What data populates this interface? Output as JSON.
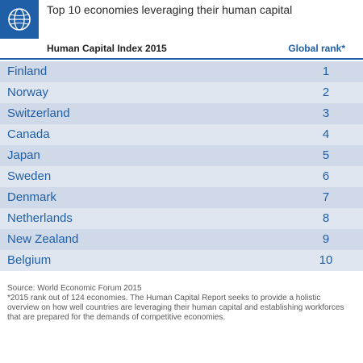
{
  "header": {
    "logo_icon": "globe-icon",
    "title": "Top 10 economies leveraging their human capital"
  },
  "columns": {
    "left": "Human Capital Index 2015",
    "right": "Global rank*"
  },
  "colors": {
    "accent": "#1f5fa8",
    "row_odd": "#cfd9e8",
    "row_even": "#dfe6f0"
  },
  "chart_data": {
    "type": "table",
    "columns": [
      "Human Capital Index 2015",
      "Global rank*"
    ],
    "rows": [
      {
        "country": "Finland",
        "rank": 1
      },
      {
        "country": "Norway",
        "rank": 2
      },
      {
        "country": "Switzerland",
        "rank": 3
      },
      {
        "country": "Canada",
        "rank": 4
      },
      {
        "country": "Japan",
        "rank": 5
      },
      {
        "country": "Sweden",
        "rank": 6
      },
      {
        "country": "Denmark",
        "rank": 7
      },
      {
        "country": "Netherlands",
        "rank": 8
      },
      {
        "country": "New Zealand",
        "rank": 9
      },
      {
        "country": "Belgium",
        "rank": 10
      }
    ]
  },
  "footnote": {
    "source": "Source: World Economic Forum 2015",
    "note": "*2015 rank out of 124 economies. The Human Capital Report seeks to provide a holistic overview on how well countries are leveraging their human capital and establishing workforces that are prepared for the demands of competitive economies."
  }
}
